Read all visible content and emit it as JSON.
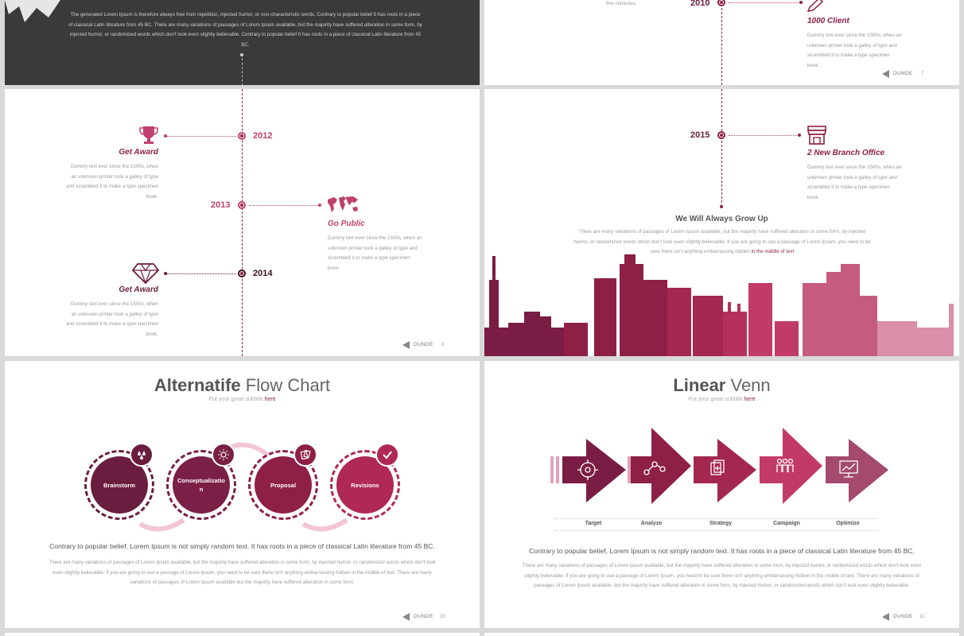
{
  "slide_top_left": {
    "paragraph": "The generated Lorem Ipsum is therefore always free from repetition, injected humor, or non-characteristic words. Contrary to popular belief It has roots in a piece of classical Latin literature from 45 BC. There are many variations of passages of Lorem Ipsum available, but the majority have suffered alteration in some form, by injected humor, or randomized words which don't look even slightly believable. Contrary to popular belief It has roots in a piece of classical Latin literature from 45 BC."
  },
  "slide_top_right": {
    "left_fragment": "five centuries.",
    "year": "2010",
    "title": "1000 Client",
    "desc": "Dummy text ever since the 1500s, when an unknown printer took a galley of type and scrambled it to make a type specimen book.",
    "brand": "DUNDE",
    "page": "7"
  },
  "slide_timeline": {
    "items": [
      {
        "year": "2012",
        "title": "Get Award",
        "icon": "trophy-icon",
        "desc": "Dummy text ever since the 1500s, when an unknown printer took a galley of type and scrambled it to make a type specimen book."
      },
      {
        "year": "2013",
        "title": "Go Public",
        "icon": "world-map-icon",
        "desc": "Dummy text ever since the 1500s, when an unknown printer took a galley of type and scrambled it to make a type specimen book."
      },
      {
        "year": "2014",
        "title": "Get Award",
        "icon": "diamond-icon",
        "desc": "Dummy text ever since the 1500s, when an unknown printer took a galley of type and scrambled it to make a type specimen book."
      }
    ],
    "brand": "DUNDE",
    "page": "8"
  },
  "slide_city": {
    "year": "2015",
    "title": "2 New Branch Office",
    "desc": "Dummy text ever since the 1500s, when an unknown printer took a galley of type and scrambled it to make a type specimen book.",
    "heading": "We Will Always Grow Up",
    "paragraph": "There are many variations of passages of Lorem Ipsum available, but the majority have suffered alteration in some form, by injected humor, or randomized words which don't look even slightly believable. If you are going to use a passage of Lorem Ipsum, you need to be sure there isn't anything embarrassing hidden",
    "highlight": "in the middle of text"
  },
  "slide_flow": {
    "title_bold": "Alternatife",
    "title_rest": " Flow Chart",
    "subtitle": "Put your great subtitle ",
    "subtitle_link": "here",
    "steps": [
      {
        "label": "Brainstorm",
        "icon": "drops-icon",
        "color": "#6b1d3f"
      },
      {
        "label": "Conseptualization",
        "icon": "sun-icon",
        "color": "#7a1f45"
      },
      {
        "label": "Proposal",
        "icon": "cards-icon",
        "color": "#8e1f47"
      },
      {
        "label": "Revisions",
        "icon": "check-icon",
        "color": "#b02855"
      }
    ],
    "lead": "Contrary to popular belief, Lorem Ipsum is not simply random text. It has roots in a piece of classical Latin literature from 45 BC.",
    "paragraph": "There are many variations of passages of Lorem Ipsum available, but the majority have suffered alteration in some form, by injected humor, or randomized words which don't look even slightly believable. If you are going to use a passage of Lorem Ipsum, you need to be sure there isn't anything embarrassing hidden in the middle of text. There are many variations of passages of Lorem Ipsum available but the majority have suffered alteration in some form.",
    "brand": "DUNDE",
    "page": "10"
  },
  "slide_venn": {
    "title_bold": "Linear",
    "title_rest": " Venn",
    "subtitle": "Put your great subtitle ",
    "subtitle_link": "here",
    "steps": [
      {
        "label": "Target",
        "icon": "target-icon",
        "color": "#6b1d3f"
      },
      {
        "label": "Analyze",
        "icon": "network-icon",
        "color": "#8e1f47"
      },
      {
        "label": "Strategy",
        "icon": "documents-icon",
        "color": "#a3274f"
      },
      {
        "label": "Campaign",
        "icon": "people-icon",
        "color": "#c23a68"
      },
      {
        "label": "Optimize",
        "icon": "monitor-chart-icon",
        "color": "#a34a6e"
      }
    ],
    "lead": "Contrary to popular belief, Lorem Ipsum is not simply random text. It has roots in a piece of classical Latin literature from 45 BC.",
    "paragraph": "There are many variations of passages of Lorem Ipsum available, but the majority have suffered alteration in some form, by injected humor, or randomized words which don't look even slightly believable. If you are going to use a passage of Lorem Ipsum, you need to be sure there isn't anything embarrassing hidden in the middle of text. There are many variations of passages of Lorem Ipsum available, but the majority have suffered alteration in some form, by injected humor, or randomized words which don't look even slightly believable.",
    "brand": "DUNDE",
    "page": "11"
  }
}
